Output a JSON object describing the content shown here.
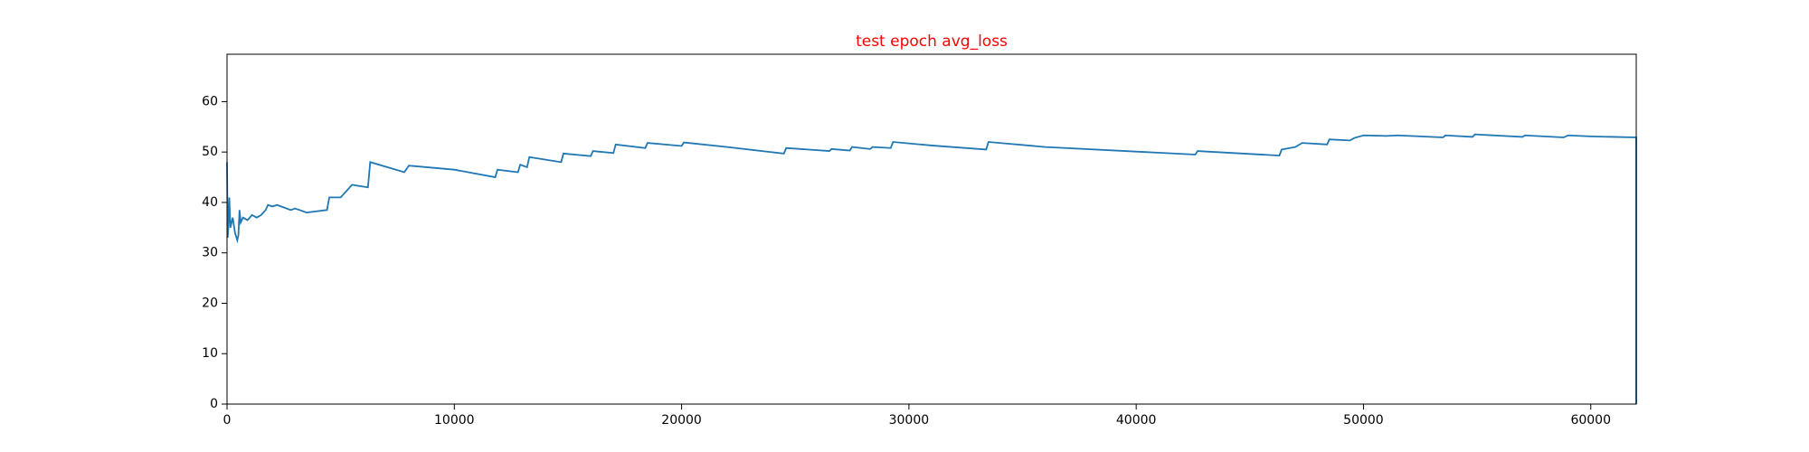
{
  "chart_data": {
    "type": "line",
    "title": "test epoch avg_loss",
    "title_color": "#ff0000",
    "x": [
      0,
      30,
      60,
      100,
      150,
      250,
      350,
      450,
      500,
      550,
      600,
      700,
      900,
      1100,
      1300,
      1500,
      1700,
      1800,
      2000,
      2200,
      2500,
      2800,
      3000,
      3500,
      4400,
      4500,
      5000,
      5100,
      5500,
      6200,
      6300,
      7800,
      8000,
      10000,
      11800,
      11900,
      12800,
      12900,
      13200,
      13300,
      14700,
      14800,
      16000,
      16100,
      17000,
      17100,
      18400,
      18500,
      20000,
      20100,
      22000,
      24500,
      24600,
      26500,
      26600,
      27400,
      27500,
      28300,
      28400,
      29200,
      29300,
      31000,
      33400,
      33500,
      36000,
      42600,
      42700,
      46300,
      46400,
      47000,
      47300,
      48400,
      48500,
      49400,
      49600,
      50000,
      51000,
      51500,
      53500,
      53600,
      54800,
      54900,
      57000,
      57100,
      58800,
      59000,
      60000,
      62000,
      62000
    ],
    "series": [
      {
        "name": "avg_loss",
        "color": "#1f77b4",
        "values": [
          48,
          33,
          35,
          41,
          35,
          37,
          34,
          32.5,
          33.5,
          38.5,
          36,
          37,
          36.5,
          37.5,
          37,
          37.5,
          38.5,
          39.5,
          39.2,
          39.5,
          39,
          38.5,
          38.8,
          38,
          38.5,
          41,
          41,
          41.5,
          43.5,
          43,
          48,
          46,
          47.3,
          46.5,
          45,
          46.5,
          46,
          47.5,
          47,
          49,
          48,
          49.7,
          49.2,
          50.2,
          49.8,
          51.5,
          50.8,
          51.8,
          51.2,
          51.9,
          51,
          49.7,
          50.8,
          50.2,
          50.6,
          50.3,
          51,
          50.6,
          51,
          50.8,
          52,
          51.3,
          50.5,
          52,
          51,
          49.5,
          50.2,
          49.3,
          50.5,
          51,
          51.8,
          51.5,
          52.5,
          52.3,
          52.8,
          53.3,
          53.2,
          53.3,
          52.9,
          53.3,
          53,
          53.5,
          53,
          53.3,
          52.9,
          53.3,
          53.1,
          52.9,
          0
        ]
      }
    ],
    "xlim": [
      0,
      62000
    ],
    "ylim": [
      0,
      69.4
    ],
    "xticks": [
      0,
      10000,
      20000,
      30000,
      40000,
      50000,
      60000
    ],
    "yticks": [
      0,
      10,
      20,
      30,
      40,
      50,
      60
    ],
    "grid": false
  }
}
